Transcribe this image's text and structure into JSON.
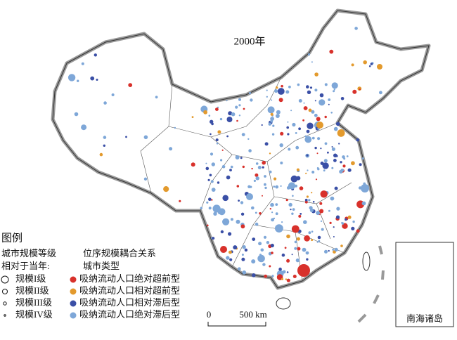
{
  "title": "2000年",
  "legend": {
    "title": "图例",
    "size_heading": [
      "城市规模等级",
      "相对于当年:"
    ],
    "sizes": [
      "规模I级",
      "规模II级",
      "规模III级",
      "规模IV级"
    ],
    "type_heading": [
      "位序规模耦合关系",
      "城市类型"
    ],
    "types": [
      {
        "label": "吸纳流动人口绝对超前型",
        "color": "#d8312b"
      },
      {
        "label": "吸纳流动人口相对超前型",
        "color": "#e39a2d"
      },
      {
        "label": "吸纳流动人口相对滞后型",
        "color": "#3a4fa6"
      },
      {
        "label": "吸纳流动人口绝对滞后型",
        "color": "#7ea7d8"
      }
    ]
  },
  "scale_bar": {
    "start": "0",
    "end": "500 km"
  },
  "inset": {
    "label": "南海诸岛"
  }
}
